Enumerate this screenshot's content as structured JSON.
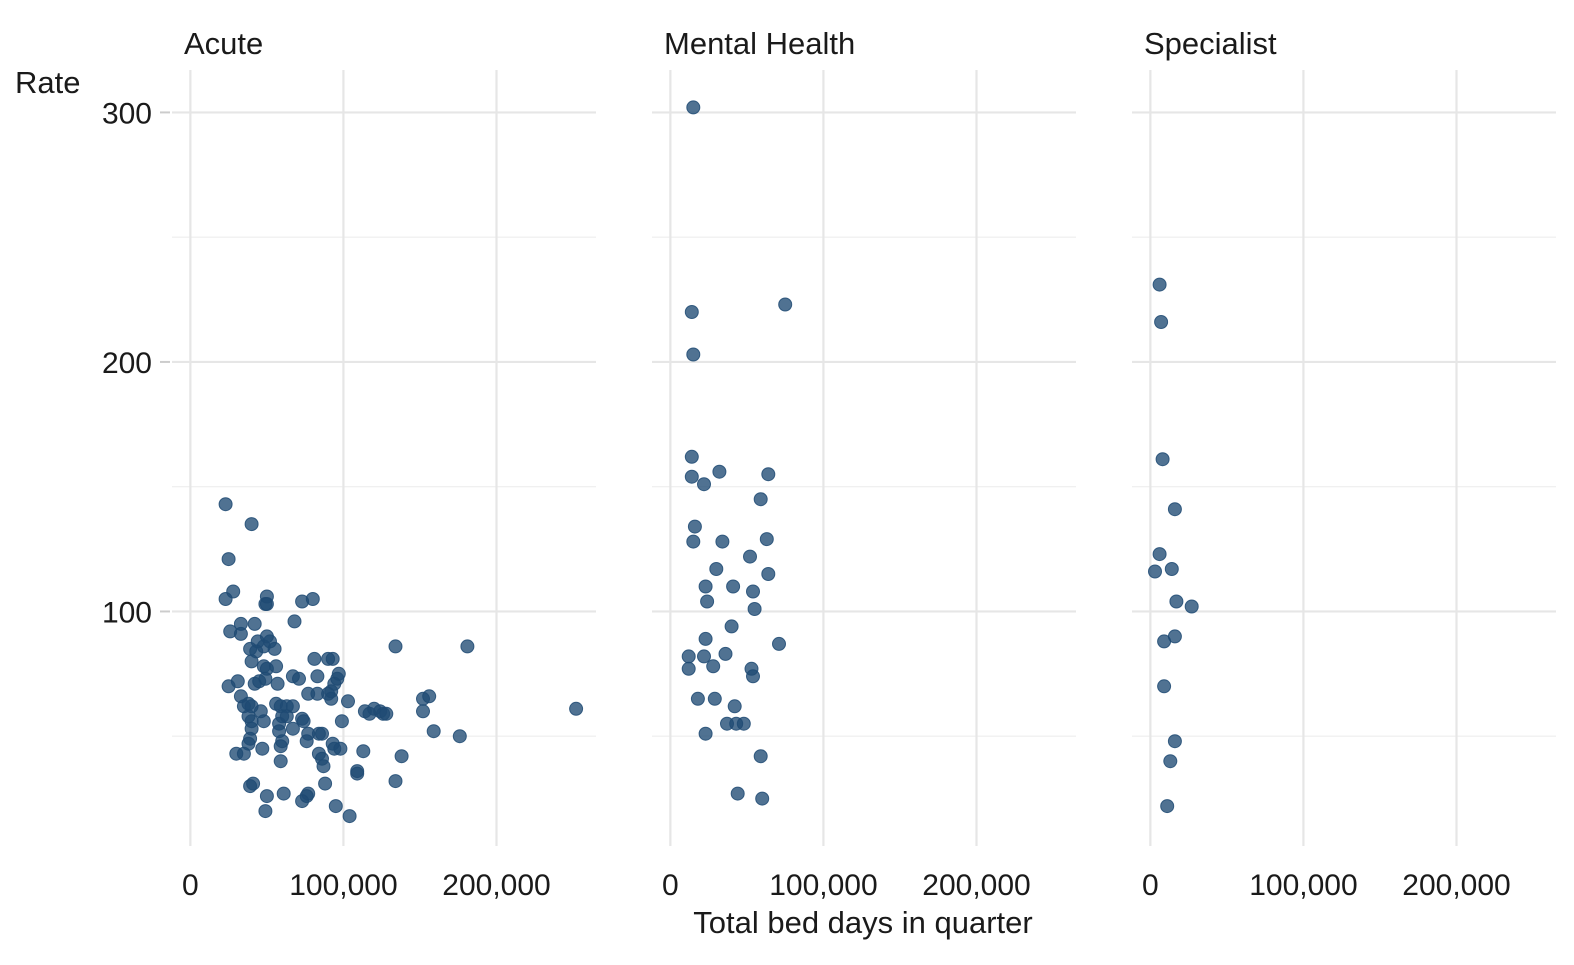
{
  "chart_data": {
    "type": "scatter",
    "xlabel": "Total bed days in quarter",
    "ylabel": "Rate",
    "xlim": [
      -12000,
      265000
    ],
    "ylim": [
      6,
      317
    ],
    "x_ticks": [
      0,
      100000,
      200000
    ],
    "x_tick_labels": [
      "0",
      "100,000",
      "200,000"
    ],
    "y_ticks": [
      100,
      200,
      300
    ],
    "y_tick_labels": [
      "100",
      "200",
      "300"
    ],
    "grid": true,
    "point_color": "#1f4a73",
    "facets": [
      {
        "title": "Acute",
        "points": [
          [
            23000,
            143
          ],
          [
            25000,
            121
          ],
          [
            28000,
            108
          ],
          [
            23000,
            105
          ],
          [
            26000,
            92
          ],
          [
            33000,
            95
          ],
          [
            33000,
            91
          ],
          [
            25000,
            70
          ],
          [
            31000,
            72
          ],
          [
            33000,
            66
          ],
          [
            35000,
            62
          ],
          [
            38000,
            63
          ],
          [
            40000,
            62
          ],
          [
            38000,
            58
          ],
          [
            40000,
            56
          ],
          [
            40000,
            53
          ],
          [
            39000,
            49
          ],
          [
            38000,
            47
          ],
          [
            30000,
            43
          ],
          [
            35000,
            43
          ],
          [
            39000,
            30
          ],
          [
            41000,
            31
          ],
          [
            40000,
            135
          ],
          [
            42000,
            95
          ],
          [
            44000,
            88
          ],
          [
            43000,
            84
          ],
          [
            39000,
            85
          ],
          [
            40000,
            80
          ],
          [
            42000,
            71
          ],
          [
            45000,
            72
          ],
          [
            46000,
            60
          ],
          [
            48000,
            56
          ],
          [
            47000,
            45
          ],
          [
            50000,
            26
          ],
          [
            49000,
            20
          ],
          [
            50000,
            106
          ],
          [
            49000,
            103
          ],
          [
            50000,
            103
          ],
          [
            50000,
            90
          ],
          [
            48000,
            86
          ],
          [
            52000,
            88
          ],
          [
            55000,
            85
          ],
          [
            48000,
            78
          ],
          [
            50000,
            77
          ],
          [
            56000,
            78
          ],
          [
            49000,
            73
          ],
          [
            57000,
            71
          ],
          [
            56000,
            63
          ],
          [
            59000,
            62
          ],
          [
            60000,
            58
          ],
          [
            58000,
            55
          ],
          [
            58000,
            52
          ],
          [
            60000,
            48
          ],
          [
            59000,
            46
          ],
          [
            59000,
            40
          ],
          [
            61000,
            27
          ],
          [
            63000,
            62
          ],
          [
            63000,
            58
          ],
          [
            67000,
            74
          ],
          [
            68000,
            96
          ],
          [
            67000,
            62
          ],
          [
            67000,
            53
          ],
          [
            71000,
            73
          ],
          [
            73000,
            57
          ],
          [
            74000,
            56
          ],
          [
            76000,
            48
          ],
          [
            77000,
            51
          ],
          [
            77000,
            67
          ],
          [
            73000,
            104
          ],
          [
            80000,
            105
          ],
          [
            81000,
            81
          ],
          [
            83000,
            74
          ],
          [
            83000,
            67
          ],
          [
            84000,
            51
          ],
          [
            86000,
            51
          ],
          [
            84000,
            43
          ],
          [
            86000,
            41
          ],
          [
            87000,
            38
          ],
          [
            88000,
            31
          ],
          [
            77000,
            27
          ],
          [
            76000,
            26
          ],
          [
            73000,
            24
          ],
          [
            90000,
            81
          ],
          [
            93000,
            81
          ],
          [
            90000,
            67
          ],
          [
            92000,
            68
          ],
          [
            94000,
            71
          ],
          [
            96000,
            73
          ],
          [
            97000,
            75
          ],
          [
            92000,
            65
          ],
          [
            93000,
            47
          ],
          [
            94000,
            45
          ],
          [
            98000,
            45
          ],
          [
            99000,
            56
          ],
          [
            103000,
            64
          ],
          [
            95000,
            22
          ],
          [
            104000,
            18
          ],
          [
            109000,
            35
          ],
          [
            109000,
            36
          ],
          [
            113000,
            44
          ],
          [
            114000,
            60
          ],
          [
            117000,
            59
          ],
          [
            120000,
            61
          ],
          [
            124000,
            60
          ],
          [
            126000,
            59
          ],
          [
            128000,
            59
          ],
          [
            134000,
            86
          ],
          [
            134000,
            32
          ],
          [
            138000,
            42
          ],
          [
            152000,
            65
          ],
          [
            152000,
            60
          ],
          [
            156000,
            66
          ],
          [
            159000,
            52
          ],
          [
            176000,
            50
          ],
          [
            181000,
            86
          ],
          [
            252000,
            61
          ]
        ]
      },
      {
        "title": "Mental Health",
        "points": [
          [
            15000,
            302
          ],
          [
            14000,
            220
          ],
          [
            15000,
            203
          ],
          [
            14000,
            162
          ],
          [
            14000,
            154
          ],
          [
            16000,
            134
          ],
          [
            15000,
            128
          ],
          [
            12000,
            82
          ],
          [
            12000,
            77
          ],
          [
            18000,
            65
          ],
          [
            22000,
            151
          ],
          [
            23000,
            110
          ],
          [
            24000,
            104
          ],
          [
            23000,
            89
          ],
          [
            22000,
            82
          ],
          [
            23000,
            51
          ],
          [
            28000,
            78
          ],
          [
            29000,
            65
          ],
          [
            30000,
            117
          ],
          [
            32000,
            156
          ],
          [
            34000,
            128
          ],
          [
            36000,
            83
          ],
          [
            37000,
            55
          ],
          [
            40000,
            94
          ],
          [
            41000,
            110
          ],
          [
            42000,
            62
          ],
          [
            43000,
            55
          ],
          [
            44000,
            27
          ],
          [
            48000,
            55
          ],
          [
            52000,
            122
          ],
          [
            53000,
            77
          ],
          [
            54000,
            74
          ],
          [
            54000,
            108
          ],
          [
            55000,
            101
          ],
          [
            59000,
            145
          ],
          [
            59000,
            42
          ],
          [
            60000,
            25
          ],
          [
            64000,
            155
          ],
          [
            63000,
            129
          ],
          [
            64000,
            115
          ],
          [
            71000,
            87
          ],
          [
            75000,
            223
          ]
        ]
      },
      {
        "title": "Specialist",
        "points": [
          [
            6000,
            231
          ],
          [
            7000,
            216
          ],
          [
            8000,
            161
          ],
          [
            6000,
            123
          ],
          [
            3000,
            116
          ],
          [
            9000,
            88
          ],
          [
            9000,
            70
          ],
          [
            14000,
            117
          ],
          [
            16000,
            141
          ],
          [
            17000,
            104
          ],
          [
            16000,
            90
          ],
          [
            16000,
            48
          ],
          [
            13000,
            40
          ],
          [
            11000,
            22
          ],
          [
            27000,
            102
          ]
        ]
      }
    ]
  }
}
